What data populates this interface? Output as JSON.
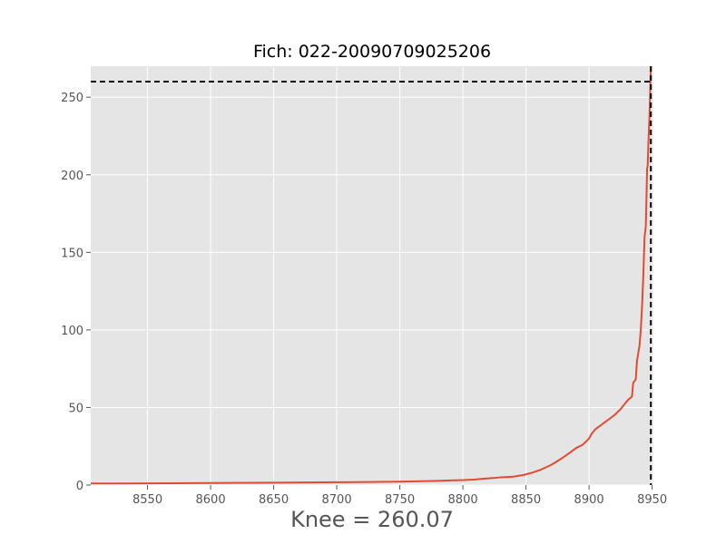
{
  "colors": {
    "plot_background": "#E5E5E5",
    "grid": "#FFFFFF",
    "series_line": "#E24A33",
    "knee_line": "#000000",
    "tick_text": "#555555"
  },
  "chart_data": {
    "type": "line",
    "title": "Fich: 022-20090709025206",
    "xlabel": "Knee = 260.07",
    "ylabel": "",
    "xlim": [
      8505,
      8951
    ],
    "ylim": [
      0,
      270
    ],
    "grid": true,
    "legend": "none",
    "xticks": [
      8550,
      8600,
      8650,
      8700,
      8750,
      8800,
      8850,
      8900,
      8950
    ],
    "yticks": [
      0,
      50,
      100,
      150,
      200,
      250
    ],
    "knee": {
      "x": 8949,
      "y": 260.07,
      "style": "dashed"
    },
    "series": [
      {
        "x": [
          8505,
          8550,
          8600,
          8650,
          8700,
          8750,
          8780,
          8790,
          8800,
          8810,
          8815,
          8825,
          8830,
          8840,
          8848,
          8855,
          8862,
          8870,
          8878,
          8885,
          8890,
          8895,
          8900,
          8902,
          8905,
          8910,
          8915,
          8920,
          8925,
          8928,
          8931,
          8934,
          8935,
          8937,
          8938,
          8940,
          8941,
          8942,
          8943,
          8944,
          8945,
          8945.5,
          8946,
          8946.5,
          8947,
          8948,
          8948.5,
          8949
        ],
        "y": [
          1,
          1.1,
          1.3,
          1.5,
          1.8,
          2.2,
          2.7,
          3,
          3.2,
          3.6,
          4,
          4.6,
          5,
          5.4,
          6.5,
          8,
          10,
          13,
          17,
          21,
          24,
          26,
          30,
          33,
          36,
          39,
          42,
          45,
          49,
          52,
          55,
          57,
          66,
          68,
          80,
          90,
          100,
          115,
          135,
          160,
          167,
          185,
          204,
          206,
          220,
          240,
          255,
          270
        ]
      }
    ]
  }
}
